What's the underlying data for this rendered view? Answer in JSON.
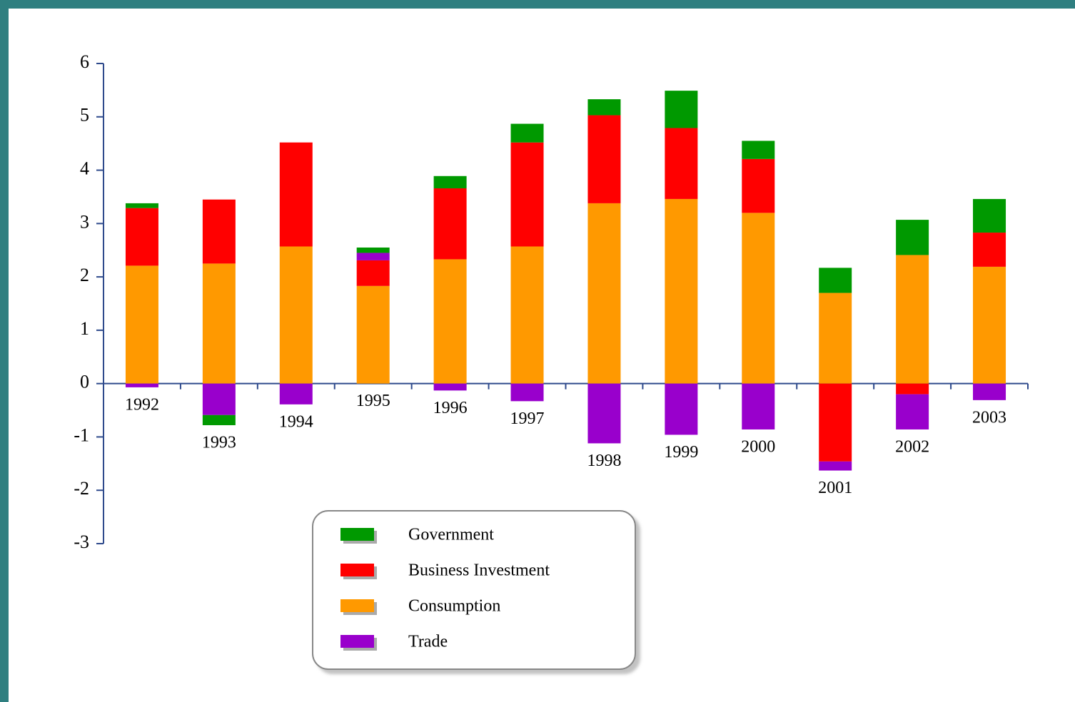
{
  "chart_data": {
    "type": "bar",
    "stacked": true,
    "categories": [
      "1992",
      "1993",
      "1994",
      "1995",
      "1996",
      "1997",
      "1998",
      "1999",
      "2000",
      "2001",
      "2002",
      "2003"
    ],
    "series": [
      {
        "name": "Government",
        "color": "#009900",
        "values": [
          0.09,
          -0.19,
          0,
          0.1,
          0.23,
          0.35,
          0.3,
          0.7,
          0.34,
          0.47,
          0.66,
          0.63
        ]
      },
      {
        "name": "Business Investment",
        "color": "#ff0000",
        "values": [
          1.08,
          1.2,
          1.95,
          0.48,
          1.33,
          1.95,
          1.65,
          1.33,
          1.01,
          -1.46,
          -0.2,
          0.64
        ]
      },
      {
        "name": "Consumption",
        "color": "#ff9900",
        "values": [
          2.21,
          2.25,
          2.57,
          1.83,
          2.33,
          2.57,
          3.38,
          3.46,
          3.2,
          1.7,
          2.41,
          2.19
        ]
      },
      {
        "name": "Trade",
        "color": "#9900cc",
        "values": [
          -0.07,
          -0.59,
          -0.39,
          0.14,
          -0.13,
          -0.33,
          -1.12,
          -0.96,
          -0.86,
          -0.17,
          -0.66,
          -0.31
        ]
      }
    ],
    "ylim": [
      -3,
      6
    ],
    "yticks": [
      -3,
      -2,
      -1,
      0,
      1,
      2,
      3,
      4,
      5,
      6
    ]
  }
}
